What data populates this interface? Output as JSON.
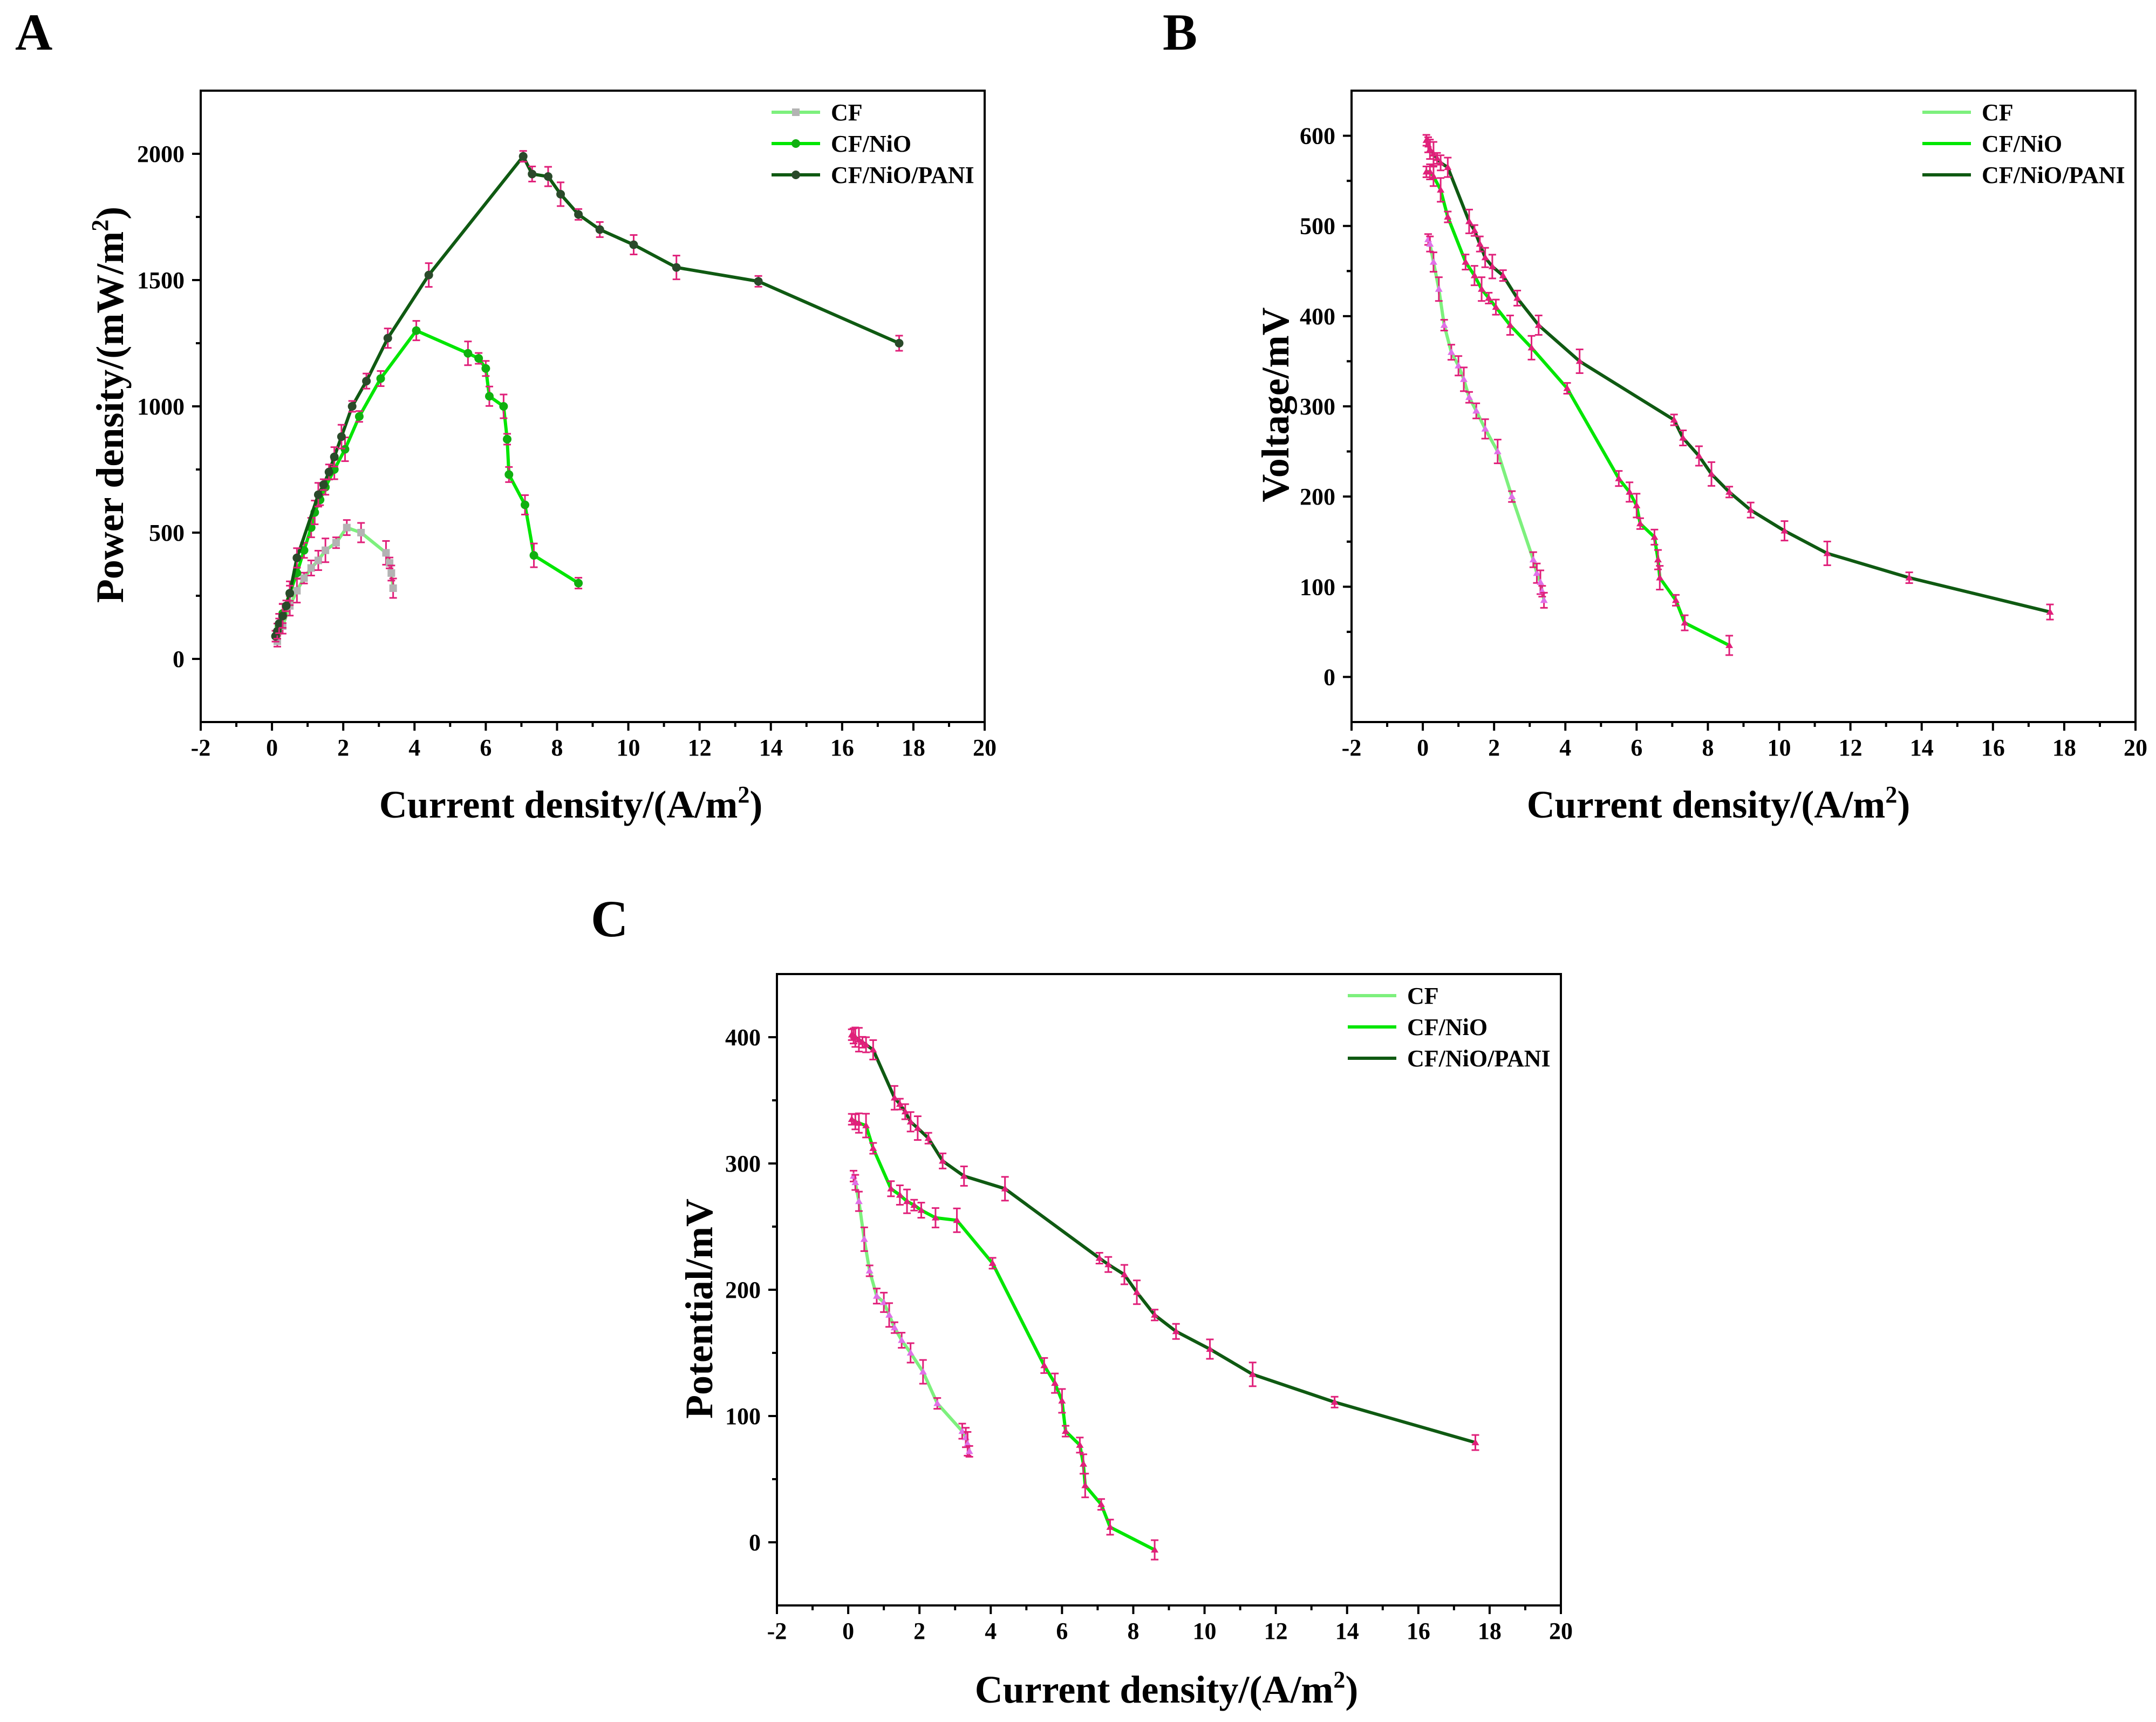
{
  "colors": {
    "cf": "#7df07d",
    "cf_marker": "#b3b3b3",
    "cf_err": "#e070e8",
    "cfnio": "#00e600",
    "cfnio_marker": "#10b010",
    "pani": "#0f5a12",
    "pani_marker": "#2a4a2a",
    "err": "#e0207a"
  },
  "chart_data": [
    {
      "id": "A",
      "type": "line",
      "panel_label": "A",
      "xlabel": "Current density/(A/m",
      "xlabel_sup": "2",
      "xlabel_tail": ")",
      "ylabel": "Power density/(mW/m",
      "ylabel_sup": "2",
      "ylabel_tail": ")",
      "xlim": [
        -2,
        20
      ],
      "ylim": [
        -250,
        2250
      ],
      "xticks": [
        "-2",
        "0",
        "2",
        "4",
        "6",
        "8",
        "10",
        "12",
        "14",
        "16",
        "18",
        "20"
      ],
      "yticks": [
        "0",
        "500",
        "1000",
        "1500",
        "2000"
      ],
      "legend": [
        "CF",
        "CF/NiO",
        "CF/NiO/PANI"
      ],
      "series": [
        {
          "name": "CF",
          "x": [
            0.15,
            0.3,
            0.5,
            0.7,
            0.9,
            1.1,
            1.3,
            1.5,
            1.8,
            2.1,
            2.5,
            3.2,
            3.3,
            3.35,
            3.4
          ],
          "y": [
            70,
            130,
            210,
            270,
            320,
            360,
            390,
            430,
            460,
            520,
            500,
            420,
            380,
            340,
            280
          ]
        },
        {
          "name": "CF/NiO",
          "x": [
            0.1,
            0.2,
            0.3,
            0.5,
            0.7,
            0.9,
            1.1,
            1.2,
            1.35,
            1.5,
            1.75,
            2.05,
            2.45,
            3.05,
            4.05,
            5.5,
            5.8,
            6.0,
            6.1,
            6.5,
            6.6,
            6.65,
            7.1,
            7.35,
            8.6
          ],
          "y": [
            90,
            130,
            180,
            260,
            340,
            430,
            520,
            580,
            630,
            680,
            750,
            830,
            960,
            1110,
            1300,
            1210,
            1190,
            1150,
            1040,
            1000,
            870,
            730,
            610,
            410,
            300
          ]
        },
        {
          "name": "CF/NiO/PANI",
          "x": [
            0.1,
            0.15,
            0.2,
            0.3,
            0.4,
            0.5,
            0.7,
            1.3,
            1.45,
            1.6,
            1.75,
            1.95,
            2.25,
            2.65,
            3.25,
            4.4,
            7.05,
            7.3,
            7.75,
            8.1,
            8.6,
            9.2,
            10.15,
            11.35,
            13.65,
            17.6
          ],
          "y": [
            90,
            110,
            140,
            170,
            210,
            260,
            400,
            650,
            690,
            740,
            800,
            880,
            1000,
            1100,
            1270,
            1520,
            1990,
            1920,
            1910,
            1840,
            1760,
            1700,
            1640,
            1550,
            1495,
            1250
          ]
        }
      ]
    },
    {
      "id": "B",
      "type": "line",
      "panel_label": "B",
      "xlabel": "Current density/(A/m",
      "xlabel_sup": "2",
      "xlabel_tail": ")",
      "ylabel": "Voltage/mV",
      "ylabel_sup": "",
      "ylabel_tail": "",
      "xlim": [
        -2,
        20
      ],
      "ylim": [
        -50,
        650
      ],
      "xticks": [
        "-2",
        "0",
        "2",
        "4",
        "6",
        "8",
        "10",
        "12",
        "14",
        "16",
        "18",
        "20"
      ],
      "yticks": [
        "0",
        "100",
        "200",
        "300",
        "400",
        "500",
        "600"
      ],
      "legend": [
        "CF",
        "CF/NiO",
        "CF/NiO/PANI"
      ],
      "series": [
        {
          "name": "CF",
          "x": [
            0.15,
            0.2,
            0.3,
            0.45,
            0.6,
            0.8,
            1.0,
            1.15,
            1.3,
            1.5,
            1.75,
            2.1,
            2.5,
            3.1,
            3.2,
            3.3,
            3.35,
            3.4
          ],
          "y": [
            485,
            480,
            460,
            430,
            390,
            360,
            345,
            330,
            310,
            295,
            275,
            250,
            200,
            130,
            115,
            105,
            95,
            85
          ]
        },
        {
          "name": "CF/NiO",
          "x": [
            0.1,
            0.2,
            0.3,
            0.5,
            0.7,
            1.2,
            1.45,
            1.65,
            1.85,
            2.05,
            2.45,
            3.05,
            4.05,
            5.5,
            5.8,
            6.0,
            6.1,
            6.5,
            6.6,
            6.65,
            7.1,
            7.35,
            8.6
          ],
          "y": [
            560,
            560,
            555,
            540,
            510,
            460,
            445,
            430,
            420,
            410,
            390,
            365,
            320,
            220,
            205,
            190,
            170,
            155,
            130,
            110,
            85,
            60,
            35
          ]
        },
        {
          "name": "CF/NiO/PANI",
          "x": [
            0.1,
            0.15,
            0.2,
            0.3,
            0.4,
            0.5,
            0.7,
            1.3,
            1.45,
            1.6,
            1.75,
            1.95,
            2.25,
            2.65,
            3.25,
            4.4,
            7.05,
            7.3,
            7.75,
            8.1,
            8.6,
            9.2,
            10.15,
            11.35,
            13.65,
            17.6
          ],
          "y": [
            595,
            590,
            585,
            580,
            575,
            570,
            565,
            505,
            495,
            480,
            465,
            455,
            445,
            420,
            390,
            350,
            285,
            265,
            245,
            225,
            205,
            185,
            162,
            137,
            110,
            72
          ]
        }
      ]
    },
    {
      "id": "C",
      "type": "line",
      "panel_label": "C",
      "xlabel": "Current density/(A/m",
      "xlabel_sup": "2",
      "xlabel_tail": ")",
      "ylabel": "Potential/mV",
      "ylabel_sup": "",
      "ylabel_tail": "",
      "xlim": [
        -2,
        20
      ],
      "ylim": [
        -50,
        450
      ],
      "xticks": [
        "-2",
        "0",
        "2",
        "4",
        "6",
        "8",
        "10",
        "12",
        "14",
        "16",
        "18",
        "20"
      ],
      "yticks": [
        "0",
        "100",
        "200",
        "300",
        "400"
      ],
      "legend": [
        "CF",
        "CF/NiO",
        "CF/NiO/PANI"
      ],
      "series": [
        {
          "name": "CF",
          "x": [
            0.15,
            0.2,
            0.3,
            0.45,
            0.6,
            0.8,
            1.0,
            1.15,
            1.3,
            1.5,
            1.75,
            2.1,
            2.5,
            3.2,
            3.3,
            3.35,
            3.4
          ],
          "y": [
            290,
            285,
            270,
            240,
            215,
            195,
            190,
            180,
            170,
            160,
            150,
            135,
            110,
            88,
            83,
            78,
            72
          ]
        },
        {
          "name": "CF/NiO",
          "x": [
            0.1,
            0.2,
            0.3,
            0.5,
            0.7,
            1.2,
            1.45,
            1.65,
            1.85,
            2.05,
            2.45,
            3.05,
            4.05,
            5.5,
            5.8,
            6.0,
            6.1,
            6.5,
            6.6,
            6.65,
            7.1,
            7.35,
            8.6
          ],
          "y": [
            335,
            333,
            332,
            330,
            312,
            280,
            275,
            270,
            267,
            263,
            257,
            255,
            221,
            140,
            126,
            112,
            88,
            77,
            62,
            45,
            30,
            12,
            -6
          ]
        },
        {
          "name": "CF/NiO/PANI",
          "x": [
            0.1,
            0.15,
            0.2,
            0.3,
            0.4,
            0.5,
            0.7,
            1.3,
            1.45,
            1.6,
            1.75,
            1.95,
            2.25,
            2.65,
            3.25,
            4.4,
            7.05,
            7.3,
            7.75,
            8.1,
            8.6,
            9.2,
            10.15,
            11.35,
            13.65,
            17.6
          ],
          "y": [
            402,
            401,
            400,
            398,
            396,
            394,
            390,
            352,
            347,
            341,
            333,
            328,
            320,
            302,
            290,
            280,
            225,
            220,
            212,
            198,
            180,
            167,
            153,
            133,
            111,
            79
          ]
        }
      ]
    }
  ]
}
